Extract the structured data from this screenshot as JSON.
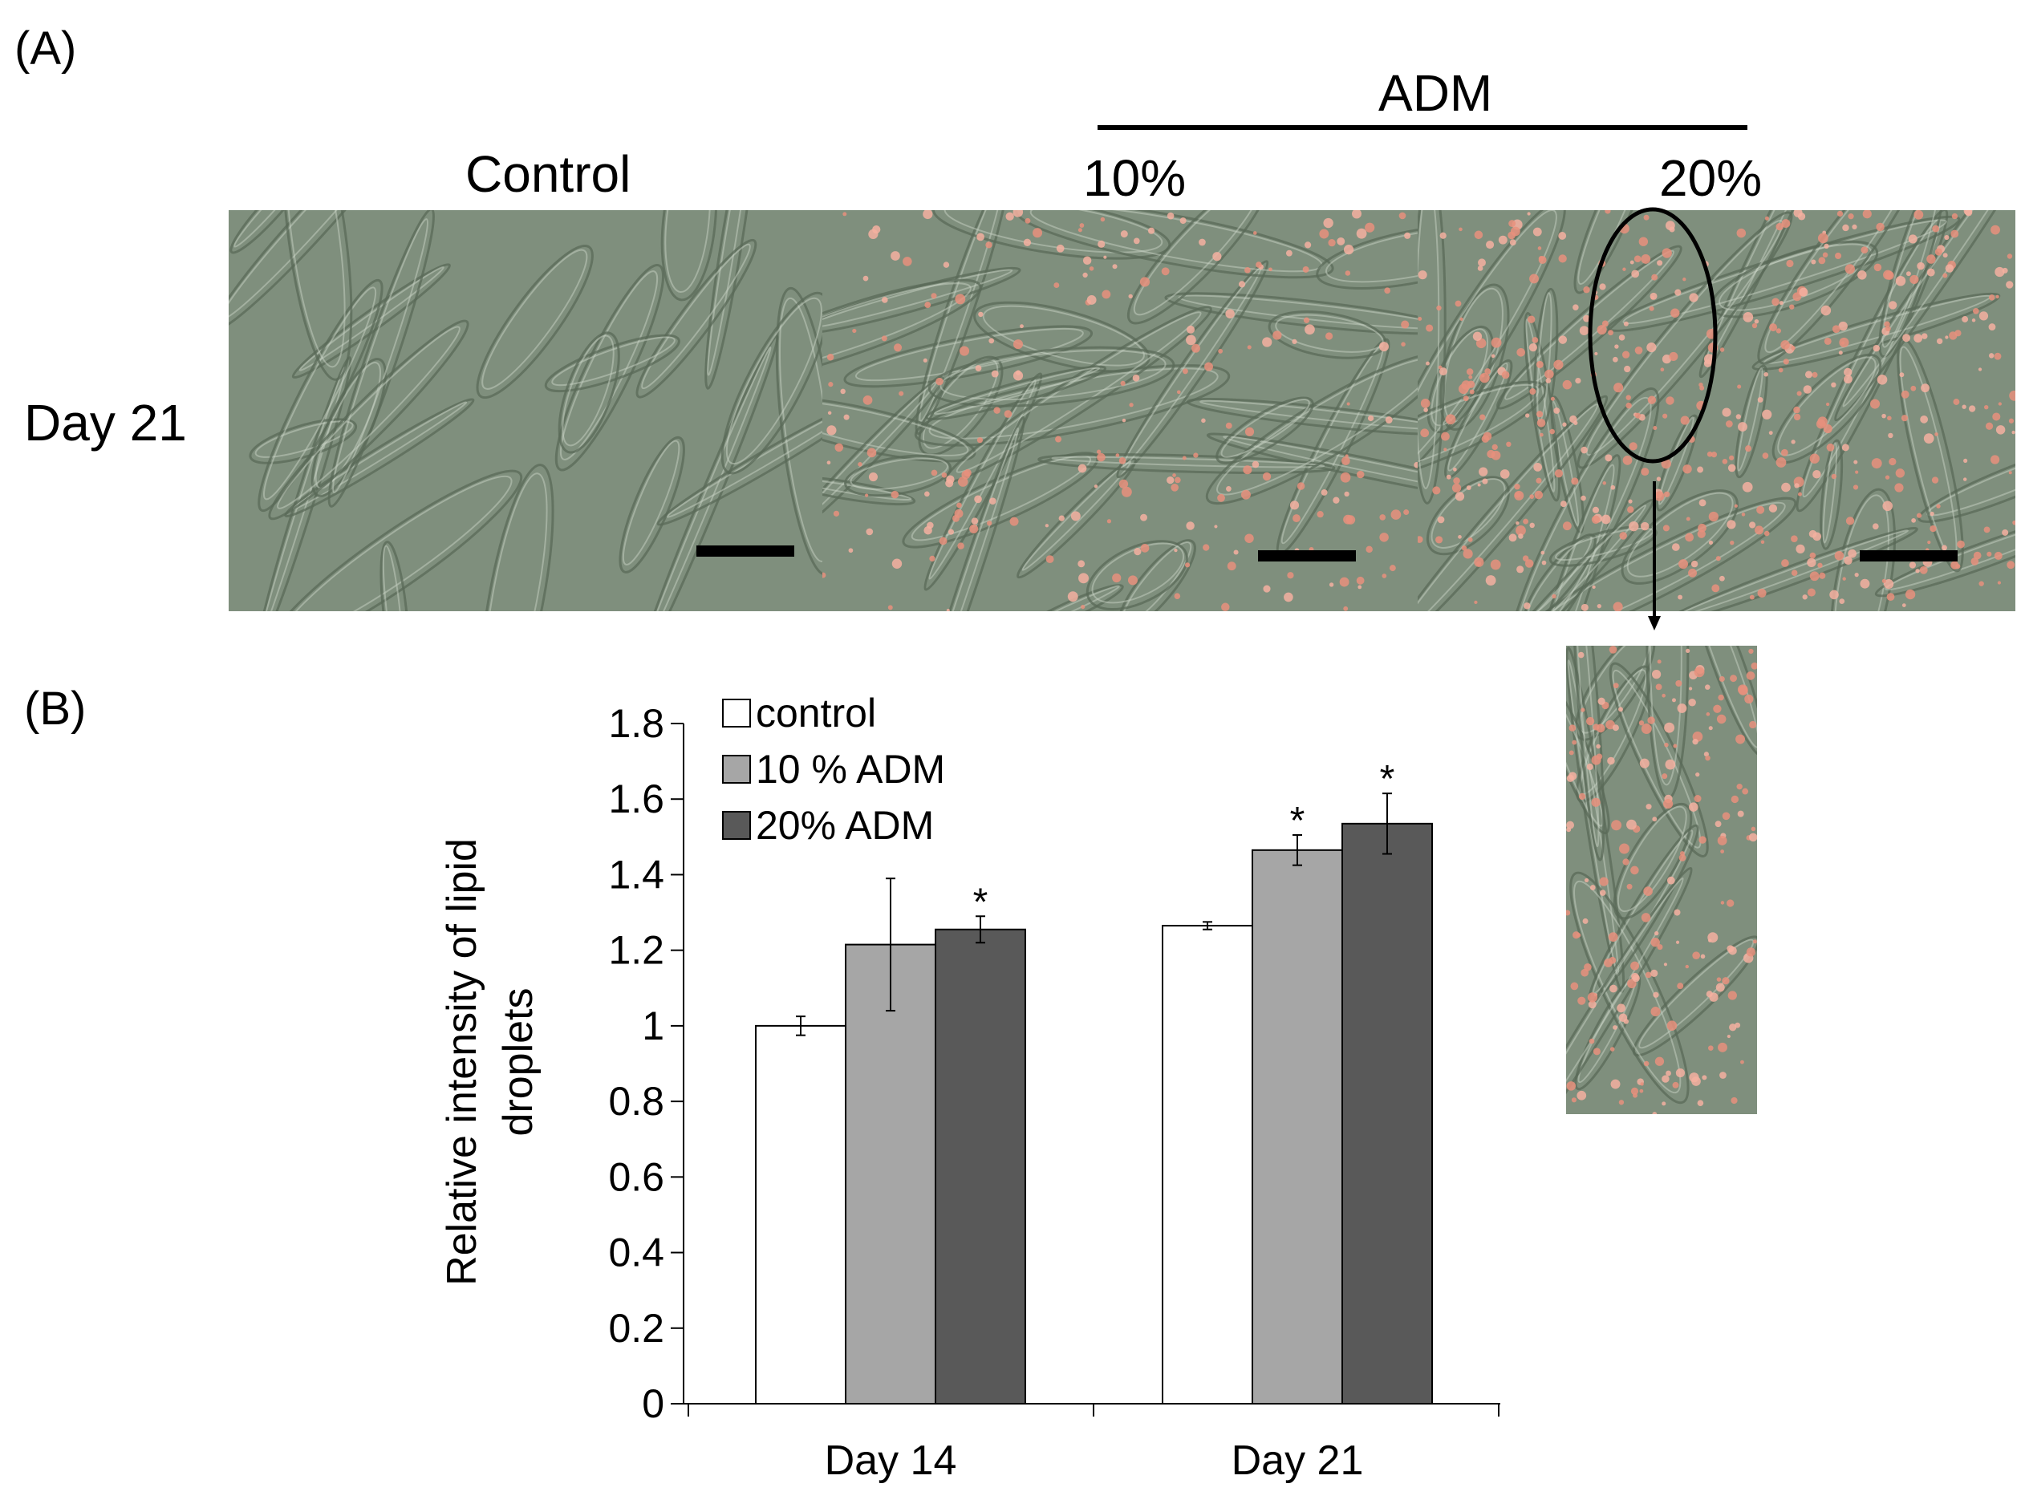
{
  "panel_a": {
    "label": "(A)",
    "treatment_label": "ADM",
    "columns": [
      "Control",
      "10%",
      "20%"
    ],
    "row_label": "Day 21"
  },
  "panel_b": {
    "label": "(B)"
  },
  "colors": {
    "micrograph_base": "#7f8f7d",
    "cell_edge": "#5a6a58",
    "cell_highlight": "#c8d2c4",
    "lipid_droplet": "#e8907c",
    "lipid_droplet_bright": "#f4b0a0",
    "control_bar": "#ffffff",
    "adm10_bar": "#a6a6a6",
    "adm20_bar": "#595959"
  },
  "chart_data": {
    "type": "bar",
    "title": "",
    "xlabel": "",
    "ylabel": "Relative intensity of lipid droplets",
    "ylabel_lines": [
      "Relative intensity of lipid",
      "droplets"
    ],
    "ylim": [
      0,
      1.8
    ],
    "yticks": [
      "0",
      "0.2",
      "0.4",
      "0.6",
      "0.8",
      "1",
      "1.2",
      "1.4",
      "1.6",
      "1.8"
    ],
    "categories": [
      "Day 14",
      "Day 21"
    ],
    "series": [
      {
        "name": "control",
        "values": [
          1.0,
          1.265
        ],
        "errors": [
          0.025,
          0.01
        ],
        "significant": [
          false,
          false
        ]
      },
      {
        "name": "10 % ADM",
        "values": [
          1.215,
          1.465
        ],
        "errors": [
          0.175,
          0.04
        ],
        "significant": [
          false,
          true
        ]
      },
      {
        "name": "20% ADM",
        "values": [
          1.255,
          1.535
        ],
        "errors": [
          0.035,
          0.08
        ],
        "significant": [
          true,
          true
        ]
      }
    ],
    "significance_marker": "*",
    "legend_position": "top-left"
  }
}
